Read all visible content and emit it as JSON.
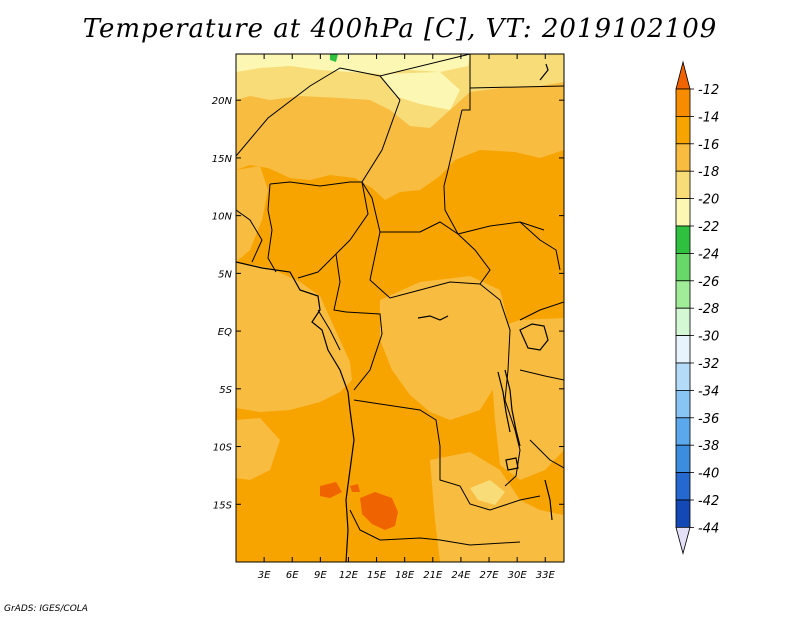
{
  "title": "Temperature at 400hPa [C], VT: 2019102109",
  "credit": "GrADS: IGES/COLA",
  "map": {
    "lon_range": [
      0,
      35
    ],
    "lat_range": [
      -20,
      24
    ],
    "fill_color": "#f8a400",
    "x_ticks": [
      {
        "lon": 3,
        "label": "3E"
      },
      {
        "lon": 6,
        "label": "6E"
      },
      {
        "lon": 9,
        "label": "9E"
      },
      {
        "lon": 12,
        "label": "12E"
      },
      {
        "lon": 15,
        "label": "15E"
      },
      {
        "lon": 18,
        "label": "18E"
      },
      {
        "lon": 21,
        "label": "21E"
      },
      {
        "lon": 24,
        "label": "24E"
      },
      {
        "lon": 27,
        "label": "27E"
      },
      {
        "lon": 30,
        "label": "30E"
      },
      {
        "lon": 33,
        "label": "33E"
      }
    ],
    "y_ticks": [
      {
        "lat": 20,
        "label": "20N"
      },
      {
        "lat": 15,
        "label": "15N"
      },
      {
        "lat": 10,
        "label": "10N"
      },
      {
        "lat": 5,
        "label": "5N"
      },
      {
        "lat": 0,
        "label": "EQ"
      },
      {
        "lat": -5,
        "label": "5S"
      },
      {
        "lat": -10,
        "label": "10S"
      },
      {
        "lat": -15,
        "label": "15S"
      }
    ]
  },
  "colorbar": {
    "labels": [
      "-12",
      "-14",
      "-16",
      "-18",
      "-20",
      "-22",
      "-24",
      "-26",
      "-28",
      "-30",
      "-32",
      "-34",
      "-36",
      "-38",
      "-40",
      "-42",
      "-44"
    ],
    "colors": [
      "#f06400",
      "#f88c00",
      "#f8a400",
      "#f8bc40",
      "#f8dc78",
      "#fcf8b4",
      "#30c040",
      "#68d868",
      "#a0ec98",
      "#d4f8d4",
      "#e8f4fc",
      "#b4dcf8",
      "#88c4f4",
      "#5ca8ec",
      "#3c8ce0",
      "#2468d0",
      "#1448b4",
      "#0c1c78",
      "#e4e0f8"
    ]
  }
}
